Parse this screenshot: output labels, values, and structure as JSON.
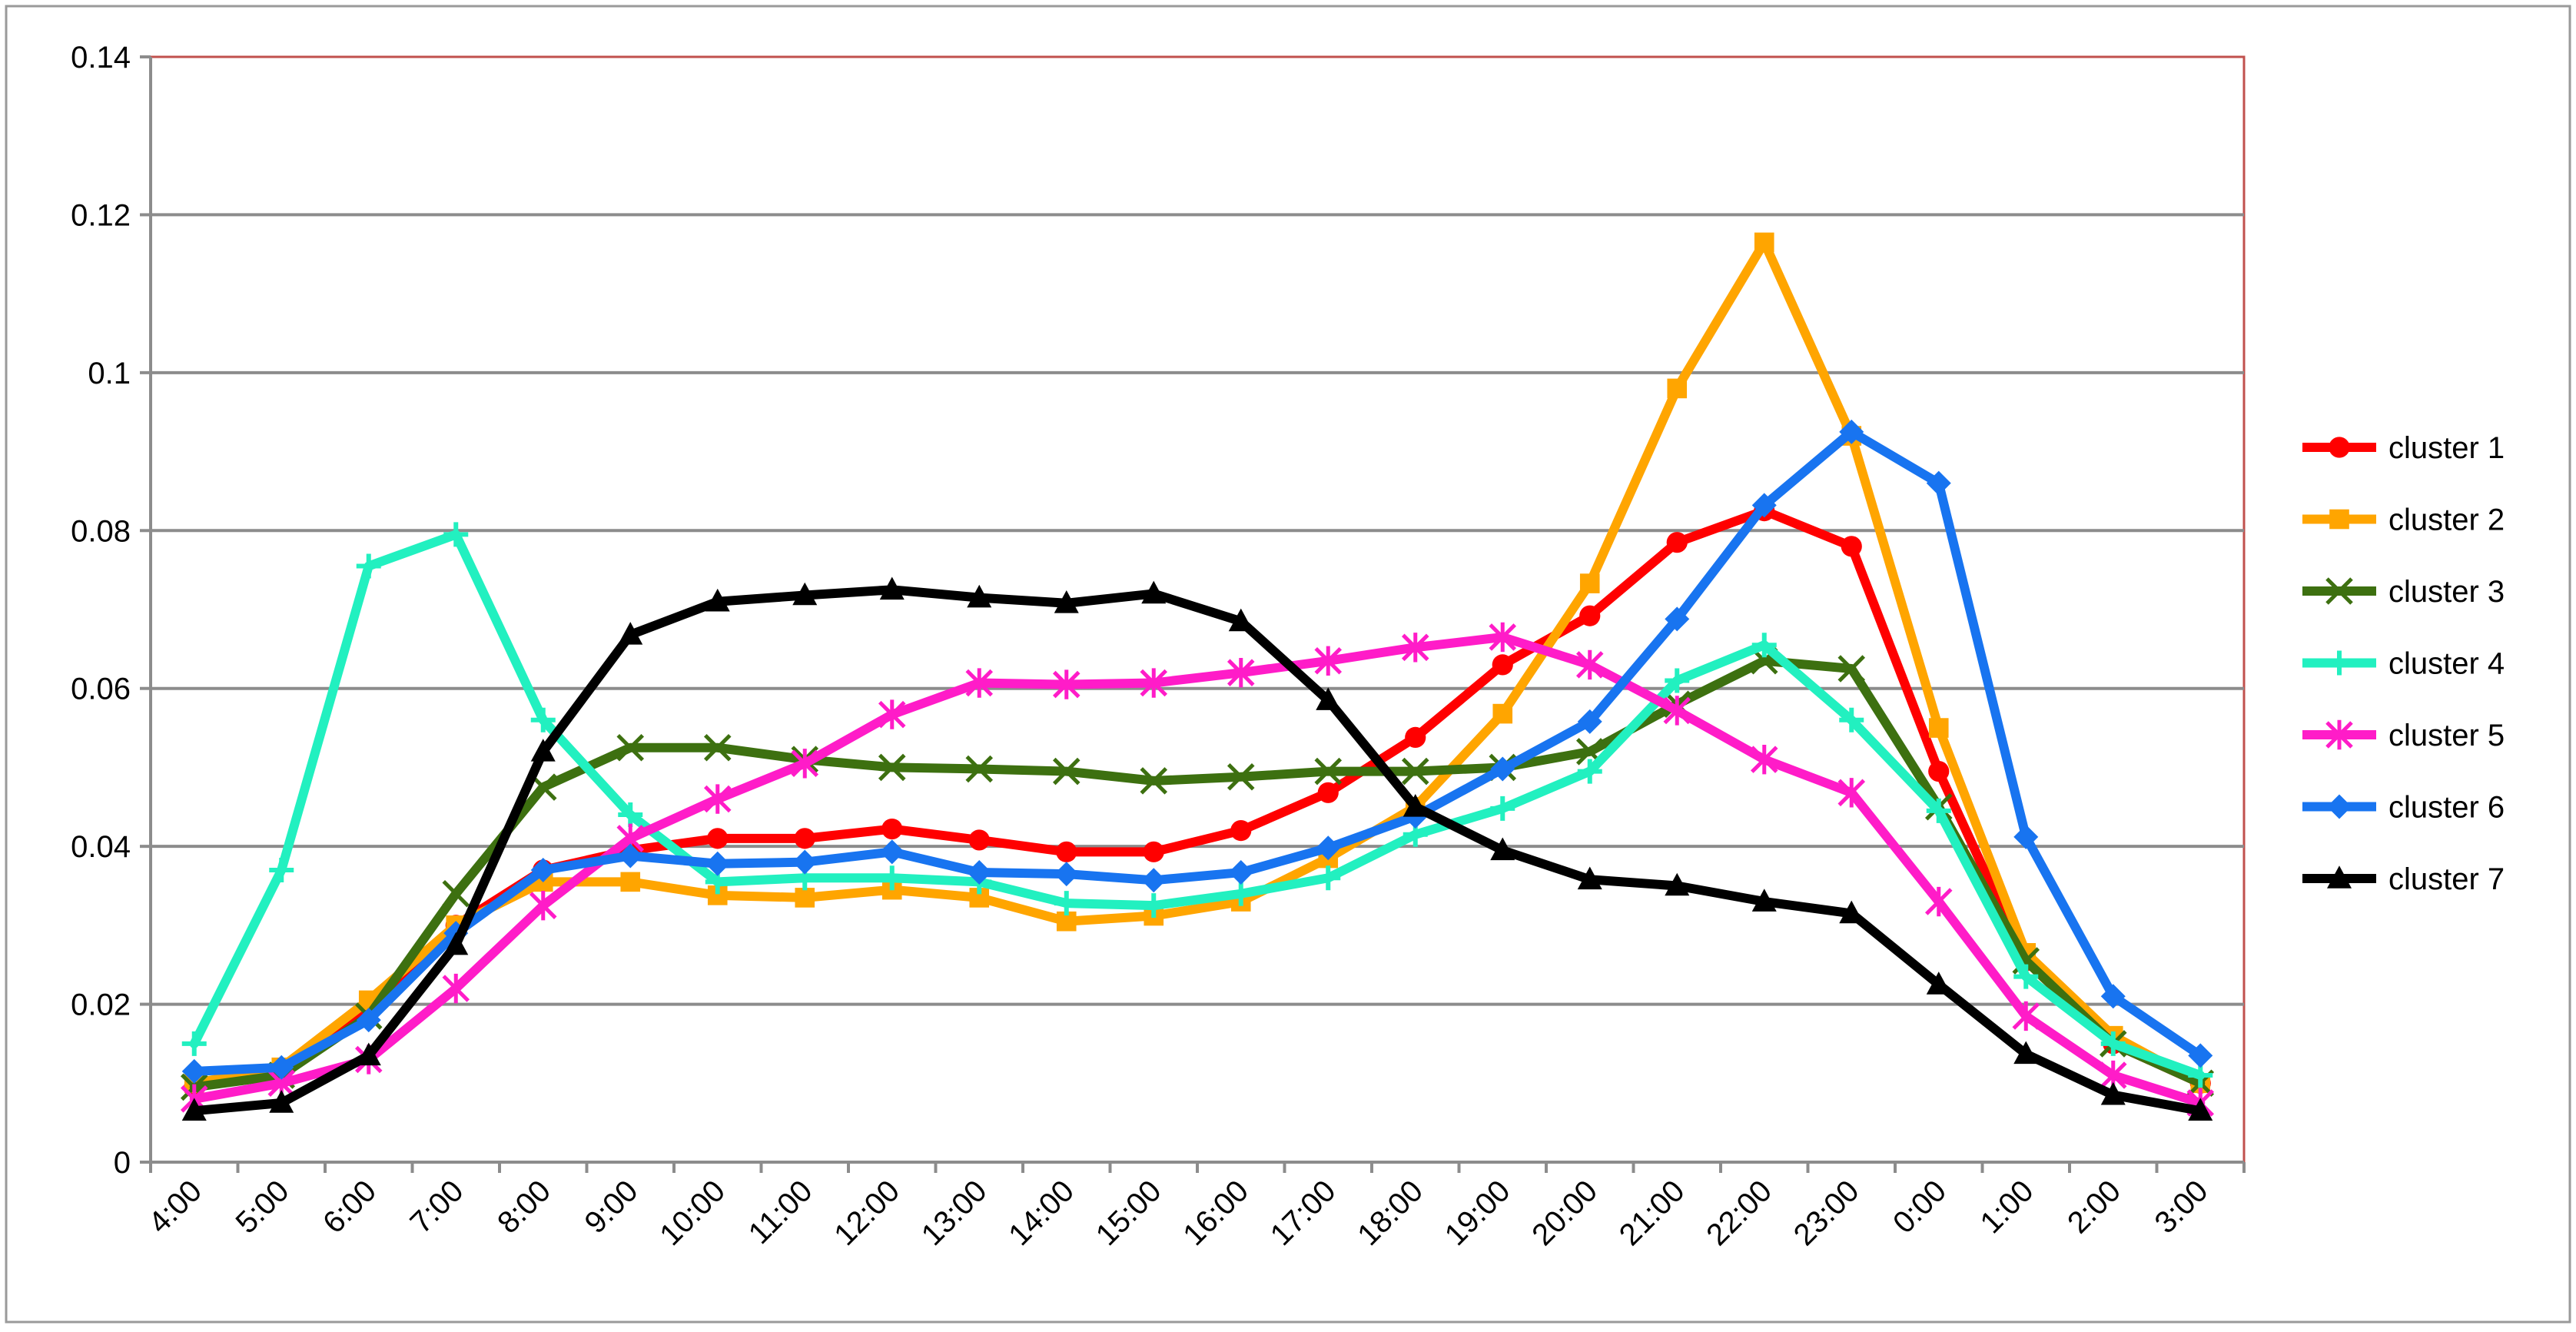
{
  "chart_data": {
    "type": "line",
    "title": "",
    "xlabel": "",
    "ylabel": "",
    "categories": [
      "4:00",
      "5:00",
      "6:00",
      "7:00",
      "8:00",
      "9:00",
      "10:00",
      "11:00",
      "12:00",
      "13:00",
      "14:00",
      "15:00",
      "16:00",
      "17:00",
      "18:00",
      "19:00",
      "20:00",
      "21:00",
      "22:00",
      "23:00",
      "0:00",
      "1:00",
      "2:00",
      "3:00"
    ],
    "y_ticks": [
      "0",
      "0.02",
      "0.04",
      "0.06",
      "0.08",
      "0.1",
      "0.12",
      "0.14"
    ],
    "ylim": [
      0,
      0.14
    ],
    "grid": true,
    "legend_position": "right",
    "series": [
      {
        "name": "cluster 1",
        "color": "#ff0000",
        "marker": "circle",
        "values": [
          0.0095,
          0.0115,
          0.019,
          0.03,
          0.037,
          0.0395,
          0.041,
          0.041,
          0.0422,
          0.0408,
          0.0393,
          0.0393,
          0.042,
          0.0468,
          0.0538,
          0.063,
          0.0692,
          0.0785,
          0.0825,
          0.078,
          0.0495,
          0.0255,
          0.015,
          0.01
        ]
      },
      {
        "name": "cluster 2",
        "color": "#ffa500",
        "marker": "square",
        "values": [
          0.01,
          0.012,
          0.0205,
          0.03,
          0.0355,
          0.0355,
          0.0338,
          0.0335,
          0.0345,
          0.0335,
          0.0305,
          0.0312,
          0.033,
          0.0385,
          0.045,
          0.0568,
          0.0733,
          0.098,
          0.1165,
          0.092,
          0.055,
          0.0265,
          0.016,
          0.01
        ]
      },
      {
        "name": "cluster 3",
        "color": "#3d7010",
        "marker": "x",
        "values": [
          0.0095,
          0.011,
          0.0185,
          0.034,
          0.0475,
          0.0525,
          0.0525,
          0.051,
          0.05,
          0.0498,
          0.0495,
          0.0483,
          0.0488,
          0.0495,
          0.0495,
          0.05,
          0.052,
          0.058,
          0.0635,
          0.0625,
          0.045,
          0.0255,
          0.015,
          0.01
        ]
      },
      {
        "name": "cluster 4",
        "color": "#22f0c0",
        "marker": "plus",
        "values": [
          0.015,
          0.037,
          0.0755,
          0.0795,
          0.056,
          0.044,
          0.0355,
          0.036,
          0.036,
          0.0355,
          0.0328,
          0.0325,
          0.034,
          0.036,
          0.0415,
          0.0448,
          0.0495,
          0.061,
          0.0655,
          0.056,
          0.0445,
          0.0235,
          0.015,
          0.011
        ]
      },
      {
        "name": "cluster 5",
        "color": "#ff1cc8",
        "marker": "asterisk",
        "values": [
          0.008,
          0.01,
          0.013,
          0.022,
          0.0325,
          0.041,
          0.046,
          0.0505,
          0.0567,
          0.0607,
          0.0605,
          0.0607,
          0.062,
          0.0635,
          0.0652,
          0.0665,
          0.063,
          0.0572,
          0.051,
          0.0468,
          0.033,
          0.0185,
          0.011,
          0.0075
        ]
      },
      {
        "name": "cluster 6",
        "color": "#1874f0",
        "marker": "diamond",
        "values": [
          0.0115,
          0.012,
          0.018,
          0.029,
          0.037,
          0.0388,
          0.0378,
          0.038,
          0.0393,
          0.0367,
          0.0365,
          0.0357,
          0.0367,
          0.0398,
          0.0438,
          0.0498,
          0.0558,
          0.0688,
          0.0832,
          0.0925,
          0.086,
          0.0412,
          0.021,
          0.0135
        ]
      },
      {
        "name": "cluster 7",
        "color": "#000000",
        "marker": "triangle",
        "values": [
          0.0065,
          0.0075,
          0.0135,
          0.0275,
          0.052,
          0.0668,
          0.071,
          0.0718,
          0.0725,
          0.0715,
          0.0708,
          0.072,
          0.0685,
          0.0585,
          0.045,
          0.0395,
          0.0358,
          0.035,
          0.033,
          0.0315,
          0.0225,
          0.0137,
          0.0085,
          0.0065
        ]
      }
    ]
  }
}
